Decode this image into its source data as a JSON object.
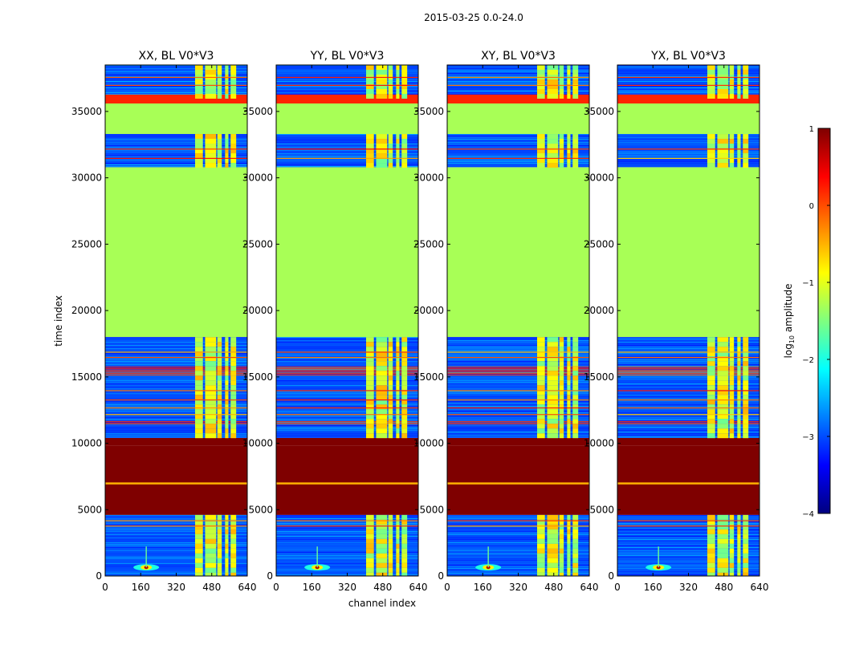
{
  "figure": {
    "suptitle": "2015-03-25 0.0-24.0",
    "xlabel": "channel index",
    "ylabel": "time index"
  },
  "colorbar": {
    "label": "log10 amplitude",
    "label_main": "log",
    "label_sub": "10",
    "label_rest": " amplitude",
    "range": [
      -4,
      1
    ],
    "ticks": [
      1,
      0,
      -1,
      -2,
      -3,
      -4
    ],
    "tick_labels": [
      "1",
      "0",
      "−1",
      "−2",
      "−3",
      "−4"
    ],
    "colormap": "jet",
    "stops": [
      "#00007f",
      "#0000ff",
      "#007fff",
      "#00ffff",
      "#7fff7f",
      "#ffff00",
      "#ff7f00",
      "#ff0000",
      "#7f0000"
    ]
  },
  "chart_data": {
    "type": "heatmap",
    "x_range": [
      0,
      640
    ],
    "y_range": [
      0,
      38500
    ],
    "x_ticks": [
      0,
      160,
      320,
      480,
      640
    ],
    "y_ticks": [
      0,
      5000,
      10000,
      15000,
      20000,
      25000,
      30000,
      35000
    ],
    "panels": [
      {
        "title": "XX, BL V0*V3",
        "polarization": "XX"
      },
      {
        "title": "YY, BL V0*V3",
        "polarization": "YY"
      },
      {
        "title": "XY, BL V0*V3",
        "polarization": "XY"
      },
      {
        "title": "YX, BL V0*V3",
        "polarization": "YX"
      }
    ],
    "time_bands": [
      {
        "from": 0,
        "to": 4600,
        "kind": "noise",
        "log_amp": -3
      },
      {
        "from": 4600,
        "to": 9800,
        "kind": "saturated",
        "log_amp": 1
      },
      {
        "from": 6900,
        "to": 7050,
        "kind": "line",
        "log_amp": -0.5
      },
      {
        "from": 9800,
        "to": 10400,
        "kind": "saturated",
        "log_amp": 1
      },
      {
        "from": 10400,
        "to": 18000,
        "kind": "noise",
        "log_amp": -3
      },
      {
        "from": 11400,
        "to": 11700,
        "kind": "line",
        "log_amp": 0.2
      },
      {
        "from": 15100,
        "to": 15800,
        "kind": "line",
        "log_amp": 0.2
      },
      {
        "from": 18000,
        "to": 30800,
        "kind": "flagged",
        "log_amp": -1.3
      },
      {
        "from": 30800,
        "to": 33300,
        "kind": "noise",
        "log_amp": -3
      },
      {
        "from": 33300,
        "to": 35600,
        "kind": "flagged",
        "log_amp": -1.3
      },
      {
        "from": 35600,
        "to": 36300,
        "kind": "line",
        "log_amp": 0.2
      },
      {
        "from": 36300,
        "to": 38500,
        "kind": "noise",
        "log_amp": -3
      }
    ],
    "rfi_channel_range": [
      400,
      600
    ],
    "rfi_columns": [
      {
        "from": 405,
        "to": 440
      },
      {
        "from": 450,
        "to": 500
      },
      {
        "from": 505,
        "to": 525
      },
      {
        "from": 540,
        "to": 555
      },
      {
        "from": 565,
        "to": 590
      }
    ],
    "hotspot": {
      "channel": 185,
      "time": 650
    }
  }
}
